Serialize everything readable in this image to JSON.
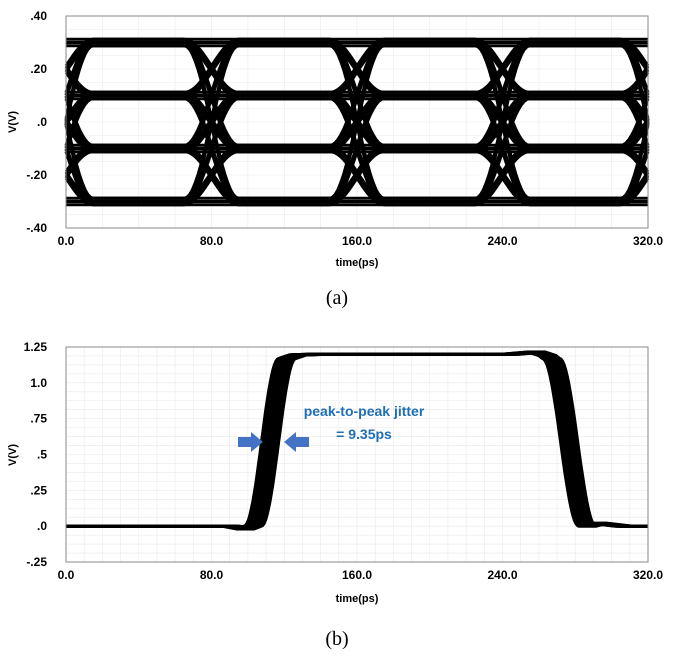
{
  "chart_data": [
    {
      "type": "line",
      "title": "",
      "xlabel": "time(ps)",
      "ylabel": "V(V)",
      "xlim": [
        0,
        320
      ],
      "ylim": [
        -0.4,
        0.4
      ],
      "x_tick_labels": [
        "0.0",
        "80.0",
        "160.0",
        "240.0",
        "320.0"
      ],
      "y_tick_labels": [
        ".40",
        ".20",
        ".0",
        "-.20",
        "-.40"
      ],
      "y_tick_values": [
        0.4,
        0.2,
        0.0,
        -0.2,
        -0.4
      ],
      "grid": true,
      "caption": "(a)",
      "description_levels": [
        -0.3,
        -0.1,
        0.1,
        0.3
      ],
      "transition_centers": [
        0,
        80,
        160,
        240,
        320
      ]
    },
    {
      "type": "line",
      "title": "",
      "xlabel": "time(ps)",
      "ylabel": "V(V)",
      "xlim": [
        0,
        320
      ],
      "ylim": [
        -0.25,
        1.25
      ],
      "x_tick_labels": [
        "0.0",
        "80.0",
        "160.0",
        "240.0",
        "320.0"
      ],
      "y_tick_labels": [
        "1.25",
        "1.0",
        ".75",
        ".5",
        ".25",
        ".0",
        "-.25"
      ],
      "y_tick_values": [
        1.25,
        1.0,
        0.75,
        0.5,
        0.25,
        0.0,
        -0.25
      ],
      "grid": true,
      "caption": "(b)",
      "annotation": {
        "line1": "peak-to-peak jitter",
        "line2": "= 9.35ps",
        "color": "#1f6fb5"
      },
      "pulse": {
        "rise_start": 108,
        "rise_end": 117,
        "high_level": 1.2,
        "fall_start": 265,
        "fall_end": 274,
        "jitter_ps": 9.35
      }
    }
  ]
}
